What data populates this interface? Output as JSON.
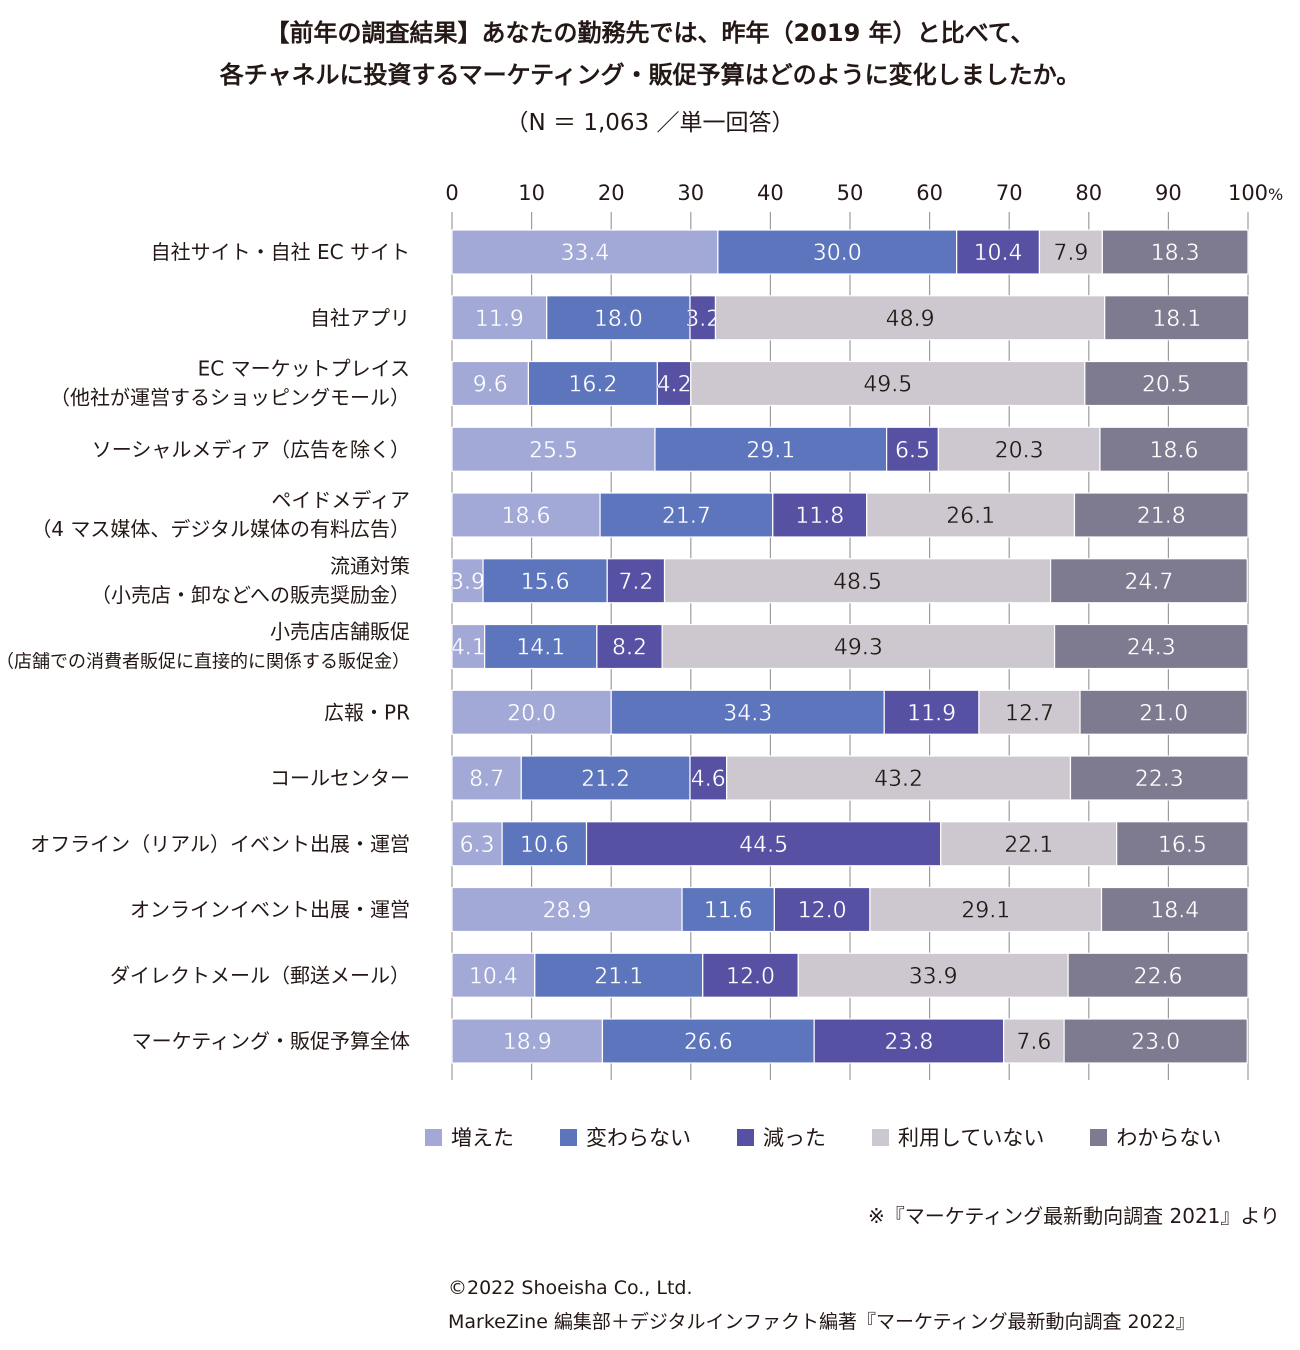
{
  "title_line1": "【前年の調査結果】あなたの勤務先では、昨年（2019 年）と比べて、",
  "title_line2": "各チャネルに投資するマーケティング・販促予算はどのように変化しましたか。",
  "subtitle": "（N ＝ 1,063 ／単一回答）",
  "source_note": "※『マーケティング最新動向調査 2021』より",
  "copyright_line1": "©2022 Shoeisha Co., Ltd.",
  "copyright_line2": "MarkeZine 編集部＋デジタルインファクト編著『マーケティング最新動向調査 2022』",
  "chart_data": {
    "type": "bar",
    "orientation": "horizontal",
    "stacked": true,
    "xlim": [
      0,
      100
    ],
    "ticks": [
      "0",
      "10",
      "20",
      "30",
      "40",
      "50",
      "60",
      "70",
      "80",
      "90",
      "100"
    ],
    "tick_unit": "%",
    "grid": true,
    "legend_position": "bottom",
    "categories": [
      [
        "自社サイト・自社 EC サイト"
      ],
      [
        "自社アプリ"
      ],
      [
        "EC マーケットプレイス",
        "（他社が運営するショッピングモール）"
      ],
      [
        "ソーシャルメディア（広告を除く）"
      ],
      [
        "ペイドメディア",
        "（4 マス媒体、デジタル媒体の有料広告）"
      ],
      [
        "流通対策",
        "（小売店・卸などへの販売奨励金）"
      ],
      [
        "小売店店舗販促",
        "（店舗での消費者販促に直接的に関係する販促金）"
      ],
      [
        "広報・PR"
      ],
      [
        "コールセンター"
      ],
      [
        "オフライン（リアル）イベント出展・運営"
      ],
      [
        "オンラインイベント出展・運営"
      ],
      [
        "ダイレクトメール（郵送メール）"
      ],
      [
        "マーケティング・販促予算全体"
      ]
    ],
    "series": [
      {
        "name": "増えた",
        "color": "#a3a9d6",
        "label_color": "#ffffff",
        "values": [
          33.4,
          11.9,
          9.6,
          25.5,
          18.6,
          3.9,
          4.1,
          20.0,
          8.7,
          6.3,
          28.9,
          10.4,
          18.9
        ]
      },
      {
        "name": "変わらない",
        "color": "#5d75bd",
        "label_color": "#ffffff",
        "values": [
          30.0,
          18.0,
          16.2,
          29.1,
          21.7,
          15.6,
          14.1,
          34.3,
          21.2,
          10.6,
          11.6,
          21.1,
          26.6
        ]
      },
      {
        "name": "減った",
        "color": "#5751a4",
        "label_color": "#ffffff",
        "values": [
          10.4,
          3.2,
          4.2,
          6.5,
          11.8,
          7.2,
          8.2,
          11.9,
          4.6,
          44.5,
          12.0,
          12.0,
          23.8
        ]
      },
      {
        "name": "利用していない",
        "color": "#cdc8cf",
        "label_color": "#231815",
        "values": [
          7.9,
          48.9,
          49.5,
          20.3,
          26.1,
          48.5,
          49.3,
          12.7,
          43.2,
          22.1,
          29.1,
          33.9,
          7.6
        ]
      },
      {
        "name": "わからない",
        "color": "#7e7a8f",
        "label_color": "#ffffff",
        "values": [
          18.3,
          18.1,
          20.5,
          18.6,
          21.8,
          24.7,
          24.3,
          21.0,
          22.3,
          16.5,
          18.4,
          22.6,
          23.0
        ]
      }
    ]
  }
}
